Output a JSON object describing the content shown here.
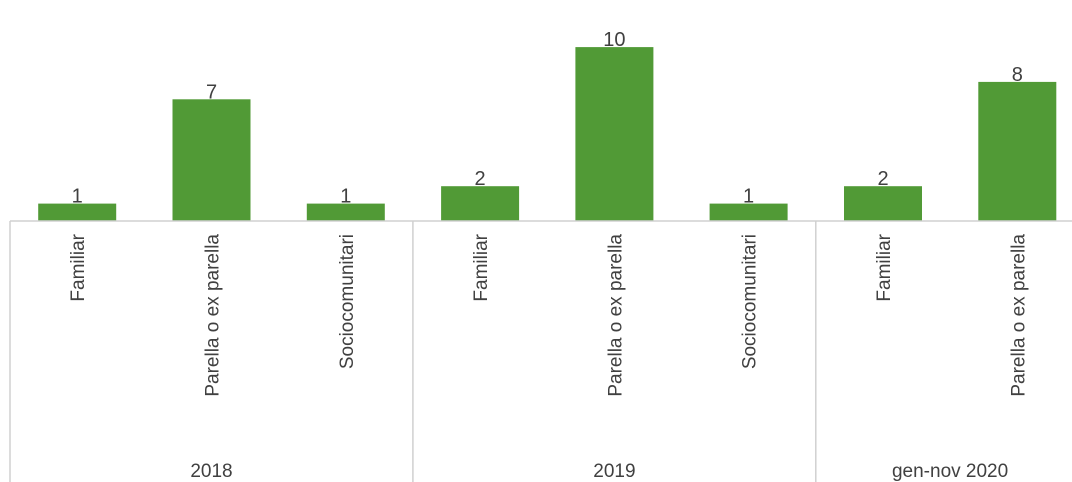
{
  "colors": {
    "bar": "#519a36",
    "text": "#404040",
    "axis": "#d0d0d0"
  },
  "chart_data": {
    "type": "bar",
    "title": "",
    "xlabel": "",
    "ylabel": "",
    "ylim": [
      0,
      11.5
    ],
    "grid": false,
    "legend": "none",
    "groups": [
      {
        "label": "2018",
        "categories": [
          "Familiar",
          "Parella o ex parella",
          "Sociocomunitari"
        ],
        "values": [
          1,
          7,
          1
        ]
      },
      {
        "label": "2019",
        "categories": [
          "Familiar",
          "Parella o ex parella",
          "Sociocomunitari"
        ],
        "values": [
          2,
          10,
          1
        ]
      },
      {
        "label": "gen-nov 2020",
        "categories": [
          "Familiar",
          "Parella o ex parella"
        ],
        "values": [
          2,
          8
        ]
      }
    ]
  }
}
